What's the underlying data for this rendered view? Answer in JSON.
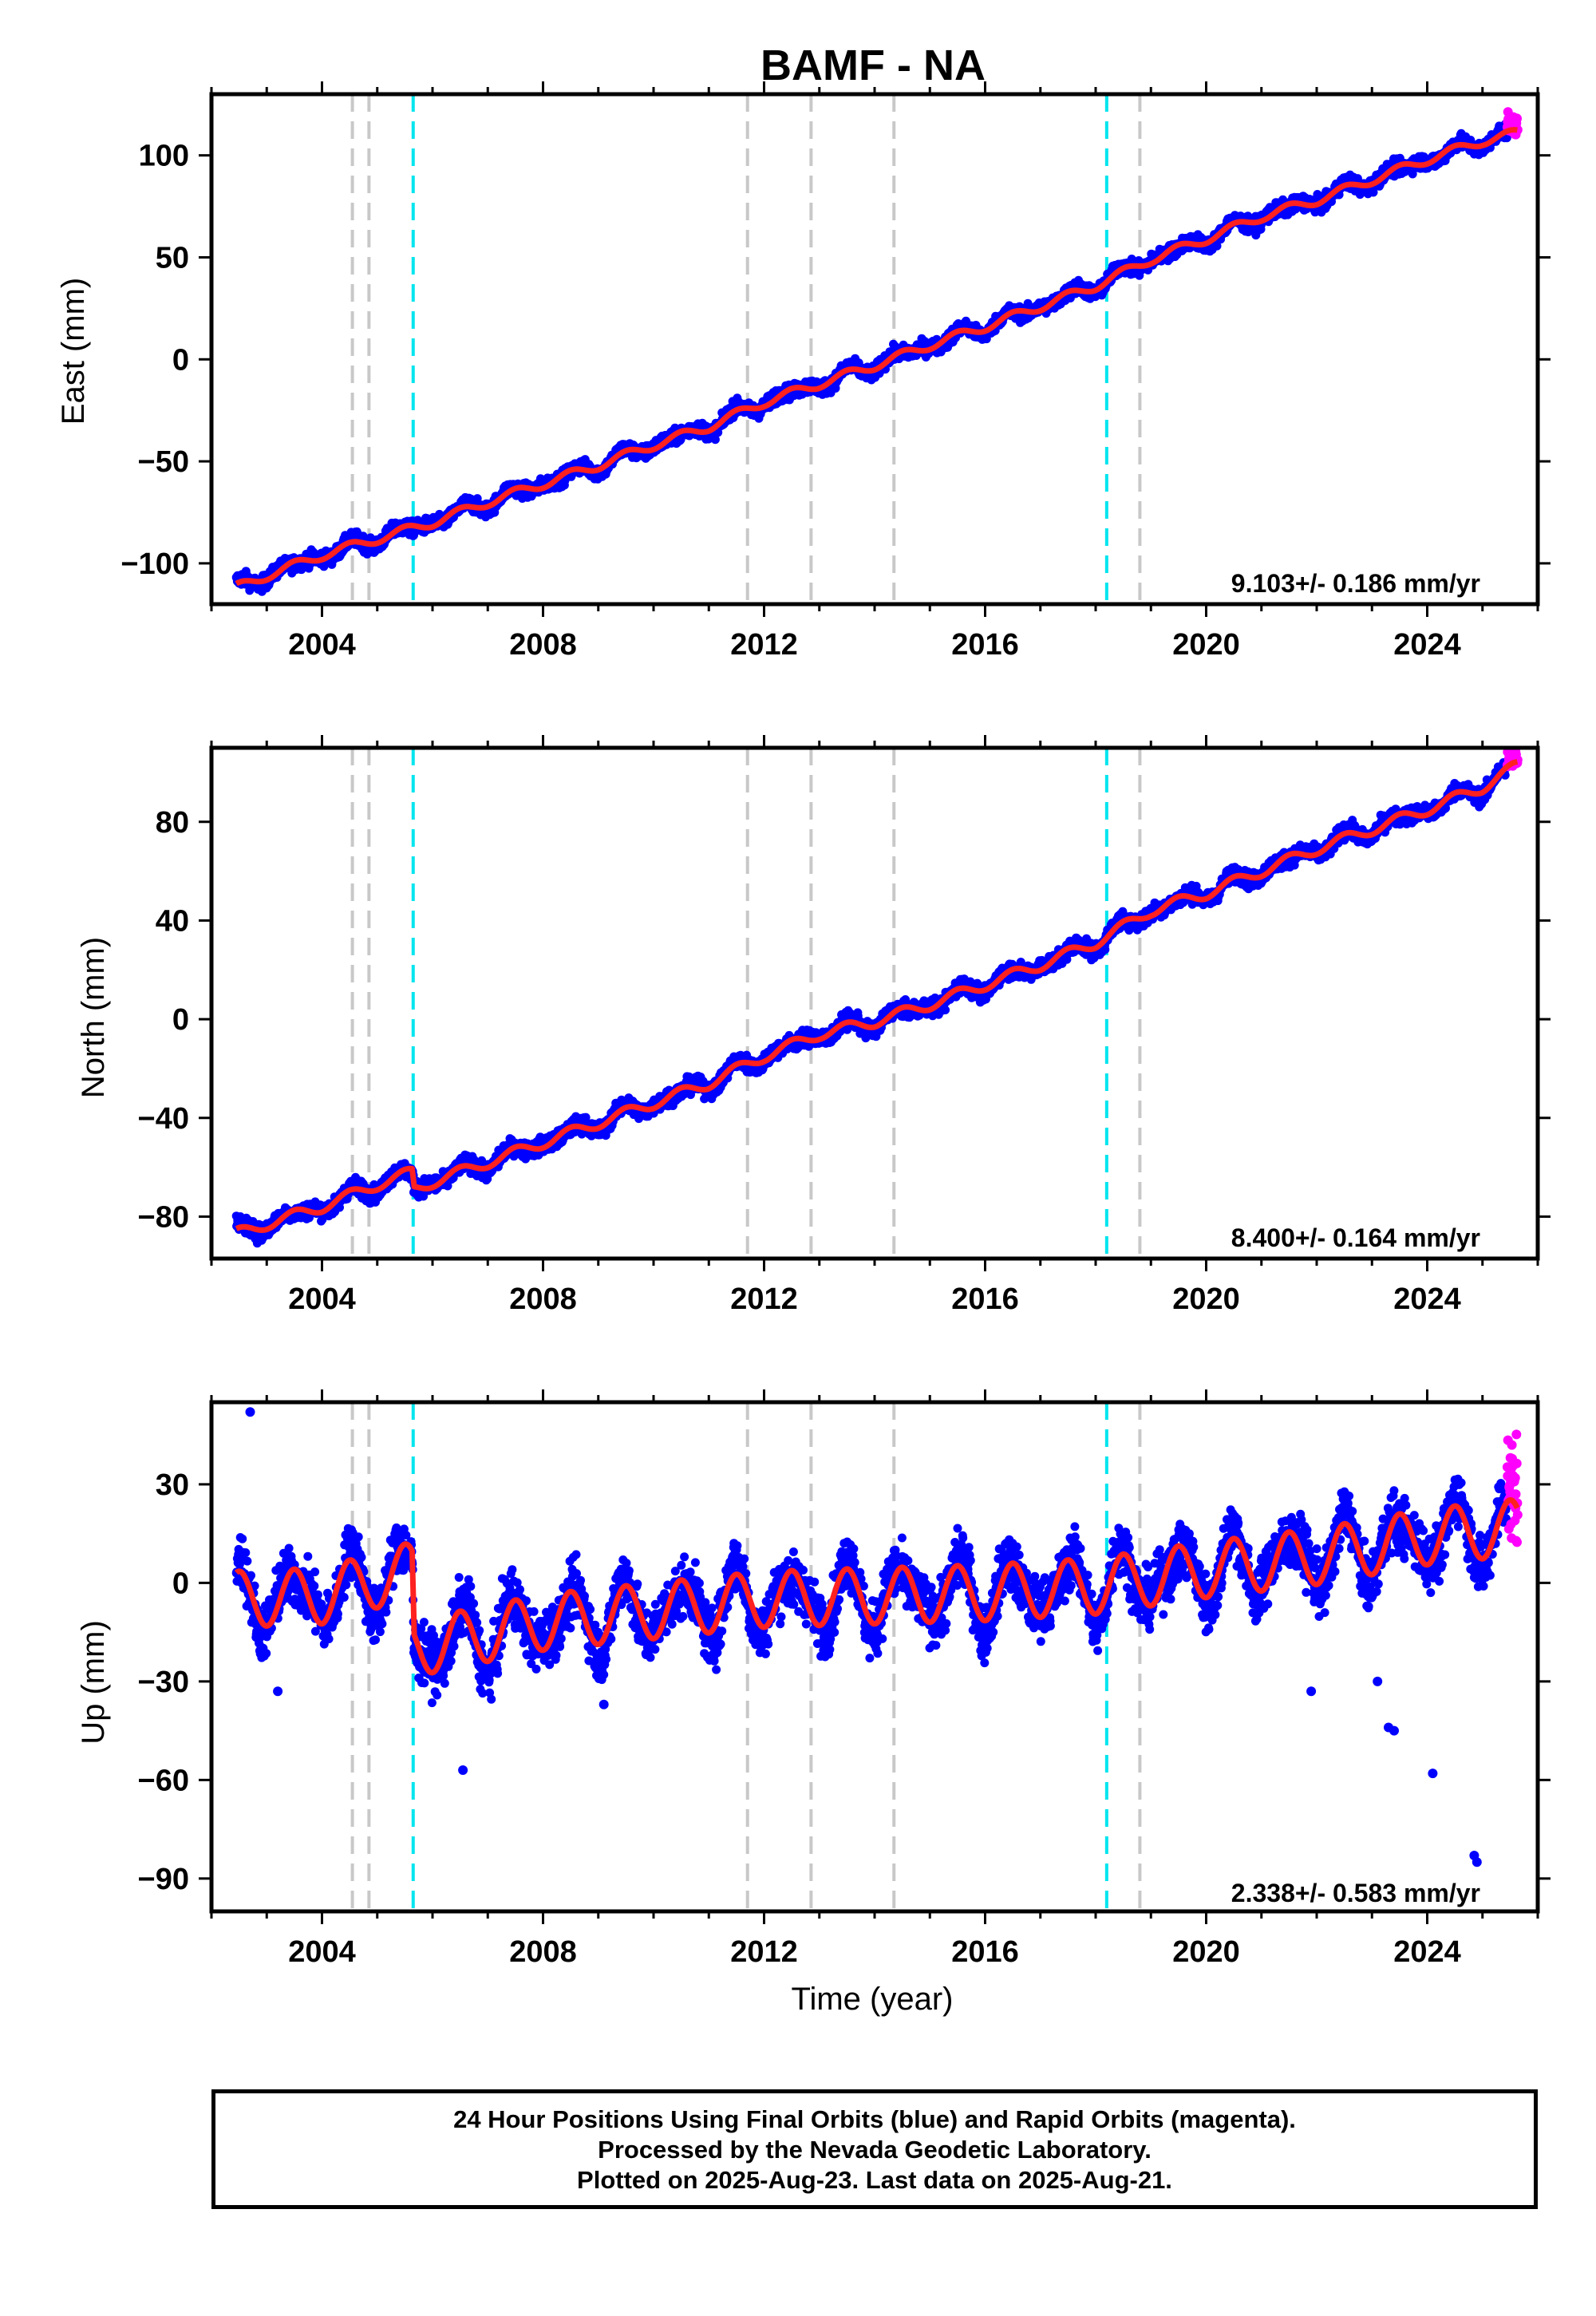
{
  "title": "BAMF - NA",
  "footer": {
    "line1": "24 Hour Positions Using Final Orbits (blue) and Rapid Orbits (magenta).",
    "line2": "Processed by the Nevada Geodetic Laboratory.",
    "line3": "Plotted on 2025-Aug-23. Last data on 2025-Aug-21."
  },
  "colors": {
    "final_orbits": "#0000ff",
    "rapid_orbits": "#ff00ff",
    "model": "#ff2020",
    "event_equipment": "#c8c8c8",
    "event_earthquake": "#00e5ee"
  },
  "chart_data": [
    {
      "type": "scatter",
      "panel": "east",
      "ylabel": "East (mm)",
      "xlabel": "",
      "xlim": [
        2002.0,
        2026.0
      ],
      "ylim": [
        -120,
        130
      ],
      "xticks": [
        2004,
        2008,
        2012,
        2016,
        2020,
        2024
      ],
      "xtick_labels": [
        "2004",
        "2008",
        "2012",
        "2016",
        "2020",
        "2024"
      ],
      "yticks": [
        -100,
        -50,
        0,
        50,
        100
      ],
      "ytick_labels": [
        "−100",
        "−50",
        "0",
        "50",
        "100"
      ],
      "rate_label": "9.103+/- 0.186 mm/yr",
      "rate_mm_per_yr": 9.103,
      "rate_sigma": 0.186,
      "data_start": 2002.45,
      "data_end": 2025.64,
      "rapid_start": 2025.45,
      "equipment_offset_steps": [],
      "earthquake_offset_steps": [],
      "model_points": [
        [
          2002.45,
          -112
        ],
        [
          2003.0,
          -106
        ],
        [
          2004.0,
          -96
        ],
        [
          2005.0,
          -88
        ],
        [
          2006.0,
          -80
        ],
        [
          2007.0,
          -70
        ],
        [
          2008.0,
          -61
        ],
        [
          2009.0,
          -52
        ],
        [
          2010.0,
          -42
        ],
        [
          2011.0,
          -33
        ],
        [
          2012.0,
          -21
        ],
        [
          2013.0,
          -12
        ],
        [
          2014.0,
          -3
        ],
        [
          2015.0,
          7
        ],
        [
          2016.0,
          16
        ],
        [
          2017.0,
          26
        ],
        [
          2018.0,
          36
        ],
        [
          2019.0,
          49
        ],
        [
          2020.0,
          59
        ],
        [
          2021.0,
          70
        ],
        [
          2022.0,
          78
        ],
        [
          2023.0,
          88
        ],
        [
          2024.0,
          98
        ],
        [
          2025.0,
          107
        ],
        [
          2025.64,
          111
        ]
      ],
      "seasonal_amplitude": 2.2,
      "scatter_sigma": 2.5,
      "outliers": []
    },
    {
      "type": "scatter",
      "panel": "north",
      "ylabel": "North (mm)",
      "xlabel": "",
      "xlim": [
        2002.0,
        2026.0
      ],
      "ylim": [
        -97,
        110
      ],
      "xticks": [
        2004,
        2008,
        2012,
        2016,
        2020,
        2024
      ],
      "xtick_labels": [
        "2004",
        "2008",
        "2012",
        "2016",
        "2020",
        "2024"
      ],
      "yticks": [
        -80,
        -40,
        0,
        40,
        80
      ],
      "ytick_labels": [
        "−80",
        "−40",
        "0",
        "40",
        "80"
      ],
      "rate_label": "8.400+/- 0.164 mm/yr",
      "rate_mm_per_yr": 8.4,
      "rate_sigma": 0.164,
      "data_start": 2002.45,
      "data_end": 2025.64,
      "rapid_start": 2025.45,
      "equipment_offset_steps": [],
      "earthquake_offset_steps": [
        [
          2005.65,
          -7
        ]
      ],
      "model_points": [
        [
          2002.45,
          -87
        ],
        [
          2003.0,
          -83
        ],
        [
          2004.0,
          -76
        ],
        [
          2005.0,
          -67
        ],
        [
          2005.64,
          -62
        ],
        [
          2005.66,
          -69
        ],
        [
          2006.0,
          -66
        ],
        [
          2007.0,
          -58
        ],
        [
          2008.0,
          -50
        ],
        [
          2009.0,
          -42
        ],
        [
          2010.0,
          -34
        ],
        [
          2011.0,
          -26
        ],
        [
          2012.0,
          -15
        ],
        [
          2013.0,
          -6
        ],
        [
          2014.0,
          -1
        ],
        [
          2015.0,
          6
        ],
        [
          2016.0,
          14
        ],
        [
          2017.0,
          22
        ],
        [
          2018.0,
          31
        ],
        [
          2019.0,
          44
        ],
        [
          2020.0,
          51
        ],
        [
          2021.0,
          60
        ],
        [
          2022.0,
          69
        ],
        [
          2023.0,
          77
        ],
        [
          2024.0,
          85
        ],
        [
          2025.0,
          94
        ],
        [
          2025.64,
          103
        ]
      ],
      "seasonal_amplitude": 2.2,
      "scatter_sigma": 2.3,
      "outliers": []
    },
    {
      "type": "scatter",
      "panel": "up",
      "ylabel": "Up (mm)",
      "xlabel": "Time (year)",
      "xlim": [
        2002.0,
        2026.0
      ],
      "ylim": [
        -100,
        55
      ],
      "xticks": [
        2004,
        2008,
        2012,
        2016,
        2020,
        2024
      ],
      "xtick_labels": [
        "2004",
        "2008",
        "2012",
        "2016",
        "2020",
        "2024"
      ],
      "yticks": [
        -90,
        -60,
        -30,
        0,
        30
      ],
      "ytick_labels": [
        "−90",
        "−60",
        "−30",
        "0",
        "30"
      ],
      "rate_label": "2.338+/- 0.583 mm/yr",
      "rate_mm_per_yr": 2.338,
      "rate_sigma": 0.583,
      "data_start": 2002.45,
      "data_end": 2025.64,
      "rapid_start": 2025.45,
      "equipment_offset_steps": [],
      "earthquake_offset_steps": [
        [
          2005.65,
          -24
        ]
      ],
      "model_points": [
        [
          2002.45,
          -5
        ],
        [
          2004.0,
          -4
        ],
        [
          2005.64,
          4
        ],
        [
          2005.66,
          -20
        ],
        [
          2008.0,
          -12
        ],
        [
          2012.0,
          -5
        ],
        [
          2016.0,
          -3
        ],
        [
          2018.0,
          -1
        ],
        [
          2020.0,
          4
        ],
        [
          2022.0,
          8
        ],
        [
          2024.0,
          14
        ],
        [
          2025.64,
          17
        ]
      ],
      "seasonal_amplitude": 8.5,
      "scatter_sigma": 6,
      "outliers": [
        [
          2002.7,
          52
        ],
        [
          2003.2,
          -33
        ],
        [
          2006.55,
          -57
        ],
        [
          2007.05,
          -26
        ],
        [
          2009.1,
          -37
        ],
        [
          2021.9,
          -33
        ],
        [
          2023.1,
          -30
        ],
        [
          2023.3,
          -44
        ],
        [
          2023.4,
          -45
        ],
        [
          2024.1,
          -58
        ],
        [
          2024.85,
          -83
        ],
        [
          2024.9,
          -85
        ]
      ]
    }
  ],
  "event_lines": {
    "equipment_changes": [
      2004.55,
      2004.85,
      2011.7,
      2012.85,
      2014.35,
      2018.8
    ],
    "earthquakes": [
      2005.65,
      2018.2
    ]
  }
}
